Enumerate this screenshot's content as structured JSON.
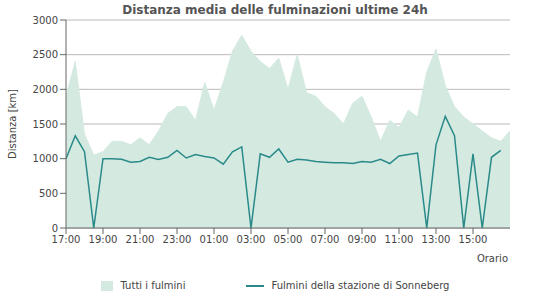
{
  "chart_data": {
    "type": "line",
    "title": "Distanza media delle fulminazioni ultime 24h",
    "y_label": "Distanza   [km]",
    "x_label": "Orario",
    "x": [
      0,
      0.5,
      1,
      1.5,
      2,
      2.5,
      3,
      3.5,
      4,
      4.5,
      5,
      5.5,
      6,
      6.5,
      7,
      7.5,
      8,
      8.5,
      9,
      9.5,
      10,
      10.5,
      11,
      11.5,
      12,
      12.5,
      13,
      13.5,
      14,
      14.5,
      15,
      15.5,
      16,
      16.5,
      17,
      17.5,
      18,
      18.5,
      19,
      19.5,
      20,
      20.5,
      21,
      21.5,
      22,
      22.5,
      23,
      23.5,
      24
    ],
    "xlim": [
      0,
      24
    ],
    "xticks": [
      {
        "value": 0,
        "label": "17:00"
      },
      {
        "value": 2,
        "label": "19:00"
      },
      {
        "value": 4,
        "label": "21:00"
      },
      {
        "value": 6,
        "label": "23:00"
      },
      {
        "value": 8,
        "label": "01:00"
      },
      {
        "value": 10,
        "label": "03:00"
      },
      {
        "value": 12,
        "label": "05:00"
      },
      {
        "value": 14,
        "label": "07:00"
      },
      {
        "value": 16,
        "label": "09:00"
      },
      {
        "value": 18,
        "label": "11:00"
      },
      {
        "value": 20,
        "label": "13:00"
      },
      {
        "value": 22,
        "label": "15:00"
      }
    ],
    "ylim": [
      0,
      3000
    ],
    "yticks": [
      0,
      500,
      1000,
      1500,
      2000,
      2500,
      3000
    ],
    "grid": true,
    "legend": "bottom",
    "series": [
      {
        "name": "Tutti i fulmini",
        "type": "area",
        "color": "#d4eae0",
        "values": [
          1900,
          2400,
          1350,
          1050,
          1100,
          1250,
          1250,
          1200,
          1300,
          1200,
          1400,
          1650,
          1750,
          1750,
          1550,
          2100,
          1700,
          2100,
          2550,
          2780,
          2550,
          2400,
          2300,
          2450,
          2000,
          2500,
          1950,
          1900,
          1750,
          1650,
          1500,
          1800,
          1900,
          1600,
          1250,
          1550,
          1450,
          1700,
          1600,
          2250,
          2580,
          2050,
          1750,
          1600,
          1500,
          1400,
          1300,
          1250,
          1400
        ]
      },
      {
        "name": "Fulmini della stazione di Sonneberg",
        "type": "line",
        "color": "#2a8a8a",
        "values": [
          1000,
          1330,
          1100,
          0,
          1000,
          1000,
          990,
          950,
          960,
          1020,
          990,
          1020,
          1120,
          1010,
          1060,
          1030,
          1010,
          920,
          1100,
          1170,
          0,
          1070,
          1020,
          1140,
          950,
          990,
          980,
          960,
          950,
          940,
          940,
          930,
          960,
          950,
          990,
          930,
          1040,
          1060,
          1080,
          0,
          1200,
          1610,
          1330,
          0,
          1070,
          0,
          1020,
          1120,
          null
        ]
      }
    ]
  }
}
